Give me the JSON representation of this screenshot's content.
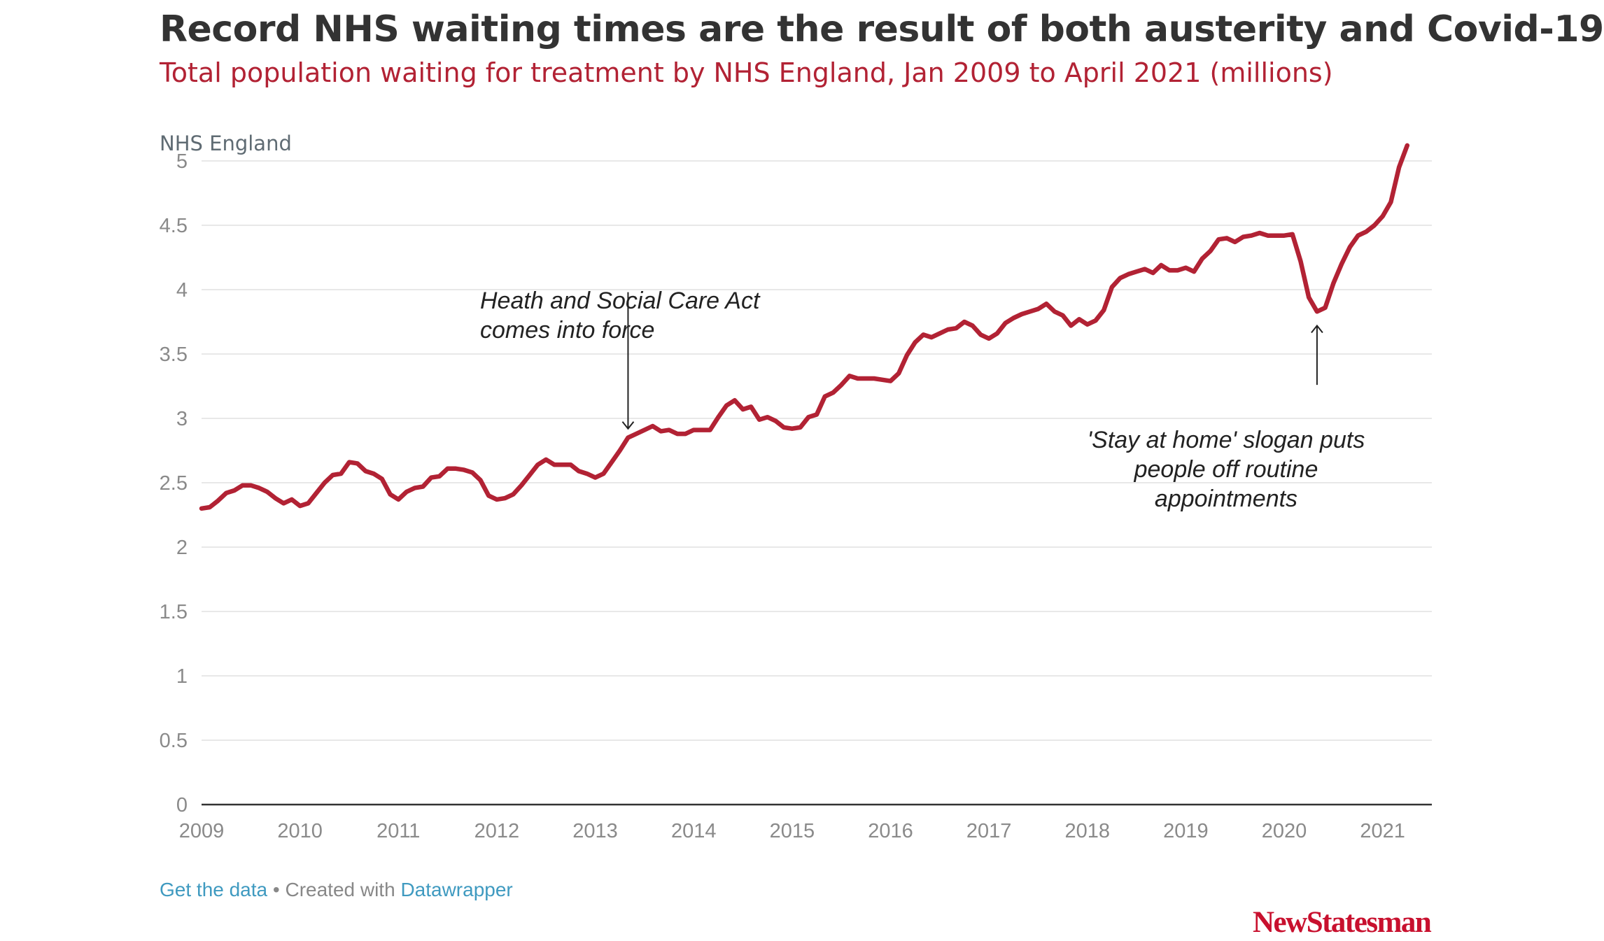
{
  "header": {
    "title": "Record NHS waiting times are the result of both austerity and Covid-19",
    "subtitle": "Total population waiting for treatment by NHS England, Jan 2009 to April 2021 (millions)",
    "panel_label": "NHS England"
  },
  "footer": {
    "get_data": "Get the data",
    "separator": " • Created with ",
    "datawrapper": "Datawrapper"
  },
  "logo": {
    "text": "NewStatesman"
  },
  "colors": {
    "line": "#b22234",
    "grid": "#e0e0e0",
    "axis": "#333333",
    "tick_text": "#8a8a8a",
    "accent": "#c8102e",
    "link": "#3f9ac0"
  },
  "chart_data": {
    "type": "line",
    "grid": "horizontal",
    "xlim": [
      2009,
      2021.5
    ],
    "ylim": [
      0,
      5
    ],
    "x_ticks": [
      "2009",
      "2010",
      "2011",
      "2012",
      "2013",
      "2014",
      "2015",
      "2016",
      "2017",
      "2018",
      "2019",
      "2020",
      "2021"
    ],
    "y_ticks": [
      "0",
      "0.5",
      "1",
      "1.5",
      "2",
      "2.5",
      "3",
      "3.5",
      "4",
      "4.5",
      "5"
    ],
    "series": [
      {
        "points": [
          [
            "2009-01",
            2.3
          ],
          [
            "2009-02",
            2.31
          ],
          [
            "2009-03",
            2.36
          ],
          [
            "2009-04",
            2.42
          ],
          [
            "2009-05",
            2.44
          ],
          [
            "2009-06",
            2.48
          ],
          [
            "2009-07",
            2.48
          ],
          [
            "2009-08",
            2.46
          ],
          [
            "2009-09",
            2.43
          ],
          [
            "2009-10",
            2.38
          ],
          [
            "2009-11",
            2.34
          ],
          [
            "2009-12",
            2.37
          ],
          [
            "2010-01",
            2.32
          ],
          [
            "2010-02",
            2.34
          ],
          [
            "2010-03",
            2.42
          ],
          [
            "2010-04",
            2.5
          ],
          [
            "2010-05",
            2.56
          ],
          [
            "2010-06",
            2.57
          ],
          [
            "2010-07",
            2.66
          ],
          [
            "2010-08",
            2.65
          ],
          [
            "2010-09",
            2.59
          ],
          [
            "2010-10",
            2.57
          ],
          [
            "2010-11",
            2.53
          ],
          [
            "2010-12",
            2.41
          ],
          [
            "2011-01",
            2.37
          ],
          [
            "2011-02",
            2.43
          ],
          [
            "2011-03",
            2.46
          ],
          [
            "2011-04",
            2.47
          ],
          [
            "2011-05",
            2.54
          ],
          [
            "2011-06",
            2.55
          ],
          [
            "2011-07",
            2.61
          ],
          [
            "2011-08",
            2.61
          ],
          [
            "2011-09",
            2.6
          ],
          [
            "2011-10",
            2.58
          ],
          [
            "2011-11",
            2.52
          ],
          [
            "2011-12",
            2.4
          ],
          [
            "2012-01",
            2.37
          ],
          [
            "2012-02",
            2.38
          ],
          [
            "2012-03",
            2.41
          ],
          [
            "2012-04",
            2.48
          ],
          [
            "2012-05",
            2.56
          ],
          [
            "2012-06",
            2.64
          ],
          [
            "2012-07",
            2.68
          ],
          [
            "2012-08",
            2.64
          ],
          [
            "2012-09",
            2.64
          ],
          [
            "2012-10",
            2.64
          ],
          [
            "2012-11",
            2.59
          ],
          [
            "2012-12",
            2.57
          ],
          [
            "2013-01",
            2.54
          ],
          [
            "2013-02",
            2.57
          ],
          [
            "2013-03",
            2.66
          ],
          [
            "2013-04",
            2.75
          ],
          [
            "2013-05",
            2.85
          ],
          [
            "2013-06",
            2.88
          ],
          [
            "2013-07",
            2.91
          ],
          [
            "2013-08",
            2.94
          ],
          [
            "2013-09",
            2.9
          ],
          [
            "2013-10",
            2.91
          ],
          [
            "2013-11",
            2.88
          ],
          [
            "2013-12",
            2.88
          ],
          [
            "2014-01",
            2.91
          ],
          [
            "2014-02",
            2.91
          ],
          [
            "2014-03",
            2.91
          ],
          [
            "2014-04",
            3.01
          ],
          [
            "2014-05",
            3.1
          ],
          [
            "2014-06",
            3.14
          ],
          [
            "2014-07",
            3.07
          ],
          [
            "2014-08",
            3.09
          ],
          [
            "2014-09",
            2.99
          ],
          [
            "2014-10",
            3.01
          ],
          [
            "2014-11",
            2.98
          ],
          [
            "2014-12",
            2.93
          ],
          [
            "2015-01",
            2.92
          ],
          [
            "2015-02",
            2.93
          ],
          [
            "2015-03",
            3.01
          ],
          [
            "2015-04",
            3.03
          ],
          [
            "2015-05",
            3.17
          ],
          [
            "2015-06",
            3.2
          ],
          [
            "2015-07",
            3.26
          ],
          [
            "2015-08",
            3.33
          ],
          [
            "2015-09",
            3.31
          ],
          [
            "2015-10",
            3.31
          ],
          [
            "2015-11",
            3.31
          ],
          [
            "2015-12",
            3.3
          ],
          [
            "2016-01",
            3.29
          ],
          [
            "2016-02",
            3.35
          ],
          [
            "2016-03",
            3.49
          ],
          [
            "2016-04",
            3.59
          ],
          [
            "2016-05",
            3.65
          ],
          [
            "2016-06",
            3.63
          ],
          [
            "2016-07",
            3.66
          ],
          [
            "2016-08",
            3.69
          ],
          [
            "2016-09",
            3.7
          ],
          [
            "2016-10",
            3.75
          ],
          [
            "2016-11",
            3.72
          ],
          [
            "2016-12",
            3.65
          ],
          [
            "2017-01",
            3.62
          ],
          [
            "2017-02",
            3.66
          ],
          [
            "2017-03",
            3.74
          ],
          [
            "2017-04",
            3.78
          ],
          [
            "2017-05",
            3.81
          ],
          [
            "2017-06",
            3.83
          ],
          [
            "2017-07",
            3.85
          ],
          [
            "2017-08",
            3.89
          ],
          [
            "2017-09",
            3.83
          ],
          [
            "2017-10",
            3.8
          ],
          [
            "2017-11",
            3.72
          ],
          [
            "2017-12",
            3.77
          ],
          [
            "2018-01",
            3.73
          ],
          [
            "2018-02",
            3.76
          ],
          [
            "2018-03",
            3.84
          ],
          [
            "2018-04",
            4.02
          ],
          [
            "2018-05",
            4.09
          ],
          [
            "2018-06",
            4.12
          ],
          [
            "2018-07",
            4.14
          ],
          [
            "2018-08",
            4.16
          ],
          [
            "2018-09",
            4.13
          ],
          [
            "2018-10",
            4.19
          ],
          [
            "2018-11",
            4.15
          ],
          [
            "2018-12",
            4.15
          ],
          [
            "2019-01",
            4.17
          ],
          [
            "2019-02",
            4.14
          ],
          [
            "2019-03",
            4.24
          ],
          [
            "2019-04",
            4.3
          ],
          [
            "2019-05",
            4.39
          ],
          [
            "2019-06",
            4.4
          ],
          [
            "2019-07",
            4.37
          ],
          [
            "2019-08",
            4.41
          ],
          [
            "2019-09",
            4.42
          ],
          [
            "2019-10",
            4.44
          ],
          [
            "2019-11",
            4.42
          ],
          [
            "2019-12",
            4.42
          ],
          [
            "2020-01",
            4.42
          ],
          [
            "2020-02",
            4.43
          ],
          [
            "2020-03",
            4.22
          ],
          [
            "2020-04",
            3.94
          ],
          [
            "2020-05",
            3.83
          ],
          [
            "2020-06",
            3.86
          ],
          [
            "2020-07",
            4.05
          ],
          [
            "2020-08",
            4.2
          ],
          [
            "2020-09",
            4.33
          ],
          [
            "2020-10",
            4.42
          ],
          [
            "2020-11",
            4.45
          ],
          [
            "2020-12",
            4.5
          ],
          [
            "2021-01",
            4.57
          ],
          [
            "2021-02",
            4.68
          ],
          [
            "2021-03",
            4.95
          ],
          [
            "2021-04",
            5.12
          ]
        ]
      }
    ],
    "annotations": [
      {
        "text": [
          "Heath and Social Care Act",
          "comes into force"
        ],
        "x": "2013-05",
        "arrow_from_y": 3.98,
        "arrow_to_y": 2.92
      },
      {
        "text": [
          "'Stay at home' slogan puts",
          "people off routine",
          "appointments"
        ],
        "x": "2020-05",
        "arrow_from_y": 3.26,
        "arrow_to_y": 3.72
      }
    ]
  }
}
